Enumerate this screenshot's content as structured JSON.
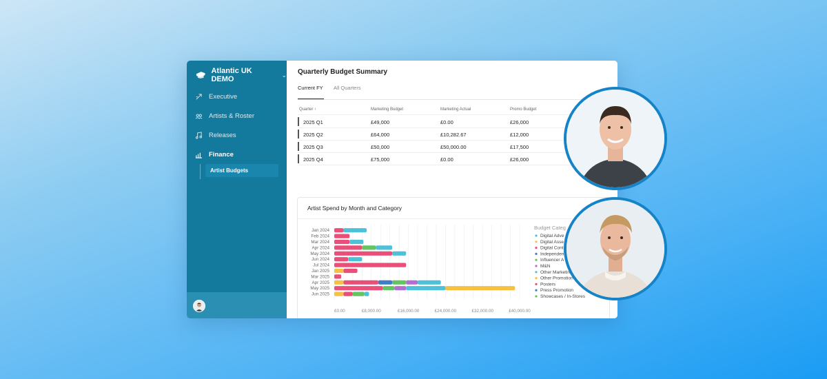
{
  "sidebar": {
    "brand": "Atlantic UK DEMO",
    "nav": [
      {
        "label": "Executive",
        "icon": "executive-icon"
      },
      {
        "label": "Artists & Roster",
        "icon": "roster-icon"
      },
      {
        "label": "Releases",
        "icon": "music-icon"
      },
      {
        "label": "Finance",
        "icon": "chart-icon"
      }
    ],
    "sub_item": "Artist Budgets"
  },
  "main": {
    "title": "Quarterly Budget Summary",
    "tabs": [
      "Current FY",
      "All Quarters"
    ],
    "table": {
      "headers": [
        "Quarter ↑",
        "Marketing Budget",
        "Marketing Actual",
        "Promo Budget"
      ],
      "rows": [
        [
          "2025 Q1",
          "£49,000",
          "£0.00",
          "£26,000"
        ],
        [
          "2025 Q2",
          "£64,000",
          "£10,282.67",
          "£12,000"
        ],
        [
          "2025 Q3",
          "£50,000",
          "£50,000.00",
          "£17,500"
        ],
        [
          "2025 Q4",
          "£75,000",
          "£0.00",
          "£26,000"
        ]
      ]
    }
  },
  "chart_data": {
    "type": "bar",
    "orientation": "horizontal",
    "stacked": true,
    "title": "Artist Spend by Month and Category",
    "legend_title": "Budget Categ",
    "legend_placement": "right",
    "xlim": [
      0,
      40000
    ],
    "x_ticks": [
      "£0.00",
      "£8,000.00",
      "£16,000.00",
      "£24,000.00",
      "£32,000.00",
      "£40,000.00"
    ],
    "categories": [
      "Jan 2024",
      "Feb 2024",
      "Mar 2024",
      "Apr 2024",
      "May 2024",
      "Jun 2024",
      "Jul 2024",
      "Jan 2025",
      "Mar 2025",
      "Apr 2025",
      "May 2025",
      "Jun 2025"
    ],
    "series": [
      {
        "name": "Digital Adve",
        "color": "#4ec0d8",
        "values": [
          0,
          0,
          0,
          0,
          0,
          0,
          0,
          0,
          0,
          0,
          0,
          0
        ]
      },
      {
        "name": "Digital Asse",
        "color": "#f5c142",
        "values": [
          0,
          0,
          0,
          0,
          0,
          0,
          0,
          2000,
          0,
          2000,
          0,
          2000
        ]
      },
      {
        "name": "Digital Cont",
        "color": "#ea4f7a",
        "values": [
          2000,
          3300,
          3300,
          6000,
          12500,
          3000,
          15500,
          3000,
          1500,
          7500,
          10500,
          2000
        ]
      },
      {
        "name": "Independen",
        "color": "#3f7dc4",
        "values": [
          0,
          0,
          0,
          0,
          0,
          0,
          0,
          0,
          0,
          3000,
          0,
          0
        ]
      },
      {
        "name": "Influencer A",
        "color": "#63c462",
        "values": [
          0,
          0,
          0,
          3000,
          0,
          0,
          0,
          0,
          0,
          3000,
          2500,
          2500
        ]
      },
      {
        "name": "M&N",
        "color": "#b36fd0",
        "values": [
          0,
          0,
          0,
          0,
          0,
          0,
          0,
          0,
          0,
          2500,
          2500,
          0
        ]
      },
      {
        "name": "Other Marketing",
        "color": "#4ec0d8",
        "values": [
          5000,
          0,
          3000,
          3500,
          3000,
          3000,
          0,
          0,
          0,
          5000,
          8500,
          1000
        ]
      },
      {
        "name": "Other Promotion",
        "color": "#f5c142",
        "values": [
          0,
          0,
          0,
          0,
          0,
          0,
          0,
          0,
          0,
          0,
          15000,
          0
        ]
      },
      {
        "name": "Posters",
        "color": "#ea4f7a",
        "values": [
          0,
          0,
          0,
          0,
          0,
          0,
          0,
          0,
          0,
          0,
          0,
          0
        ]
      },
      {
        "name": "Press Promotion",
        "color": "#3f7dc4",
        "values": [
          0,
          0,
          0,
          0,
          0,
          0,
          0,
          0,
          0,
          0,
          0,
          0
        ]
      },
      {
        "name": "Showcases / In-Stores",
        "color": "#63c462",
        "values": [
          0,
          0,
          0,
          0,
          0,
          0,
          0,
          0,
          0,
          0,
          0,
          0
        ]
      }
    ]
  }
}
